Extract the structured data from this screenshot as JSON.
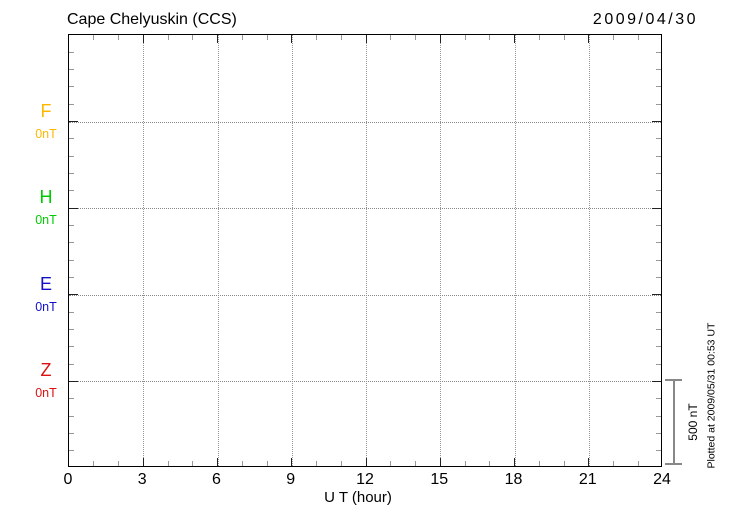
{
  "header": {
    "station_title": "Cape Chelyuskin (CCS)",
    "date": "2009/04/30"
  },
  "x_axis": {
    "label": "U T (hour)"
  },
  "side": {
    "scale_label": "500 nT",
    "plotted_note": "Plotted at 2009/05/31 00:53 UT"
  },
  "components": [
    {
      "label": "F",
      "value_label": "0nT",
      "color": "#FFB800"
    },
    {
      "label": "H",
      "value_label": "0nT",
      "color": "#00CC00"
    },
    {
      "label": "E",
      "value_label": "0nT",
      "color": "#1111CC"
    },
    {
      "label": "Z",
      "value_label": "0nT",
      "color": "#DD1111"
    }
  ],
  "chart_data": {
    "type": "line",
    "title": "Cape Chelyuskin (CCS)",
    "date": "2009/04/30",
    "xlabel": "U T (hour)",
    "x_range_hours": [
      0,
      24
    ],
    "x_major_ticks": [
      0,
      3,
      6,
      9,
      12,
      15,
      18,
      21,
      24
    ],
    "x_minor_tick_step_hours": 1,
    "y_minor_tick_nT": 100,
    "component_offset_nT": 500,
    "scale_bar_nT": 500,
    "grid": true,
    "legend_position": "left",
    "series": [
      {
        "name": "F",
        "baseline_nT": 0,
        "color": "#FFB800",
        "values": []
      },
      {
        "name": "H",
        "baseline_nT": 0,
        "color": "#00CC00",
        "values": []
      },
      {
        "name": "E",
        "baseline_nT": 0,
        "color": "#1111CC",
        "values": []
      },
      {
        "name": "Z",
        "baseline_nT": 0,
        "color": "#DD1111",
        "values": []
      }
    ]
  }
}
